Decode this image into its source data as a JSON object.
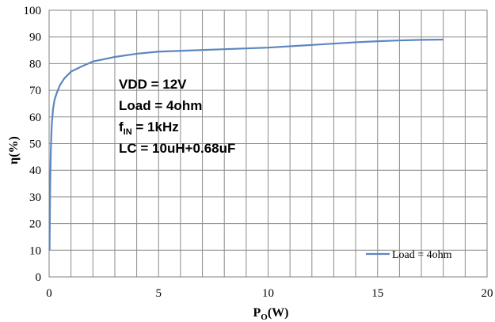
{
  "chart_data": {
    "type": "line",
    "xlabel": "P",
    "xlabel_sub": "O",
    "xlabel_unit": "(W)",
    "ylabel": "η(%)",
    "xlim": [
      0,
      20
    ],
    "ylim": [
      0,
      100
    ],
    "x_ticks": [
      "0",
      "5",
      "10",
      "15",
      "20"
    ],
    "y_ticks": [
      "0",
      "10",
      "20",
      "30",
      "40",
      "50",
      "60",
      "70",
      "80",
      "90",
      "100"
    ],
    "grid": true,
    "legend_position": "bottom-right",
    "line_color": "#5b86c0",
    "series": [
      {
        "name": "Load = 4ohm",
        "x": [
          0.02,
          0.05,
          0.08,
          0.12,
          0.18,
          0.25,
          0.35,
          0.5,
          0.7,
          1.0,
          1.5,
          2.0,
          3.0,
          4.0,
          5.0,
          6.0,
          8.0,
          10.0,
          12.0,
          14.0,
          15.0,
          16.0,
          17.0,
          18.0
        ],
        "y": [
          10,
          35,
          48,
          57,
          63,
          66.5,
          69,
          72,
          74.5,
          77,
          79,
          80.8,
          82.5,
          83.7,
          84.5,
          84.8,
          85.4,
          86,
          87,
          88,
          88.4,
          88.7,
          88.9,
          89
        ]
      }
    ],
    "annotations": [
      {
        "text": "VDD = 12V"
      },
      {
        "text": "Load = 4ohm"
      },
      {
        "text": "f",
        "sub": "IN",
        "rest": " = 1kHz"
      },
      {
        "text": "LC = 10uH+0.68uF"
      }
    ]
  }
}
